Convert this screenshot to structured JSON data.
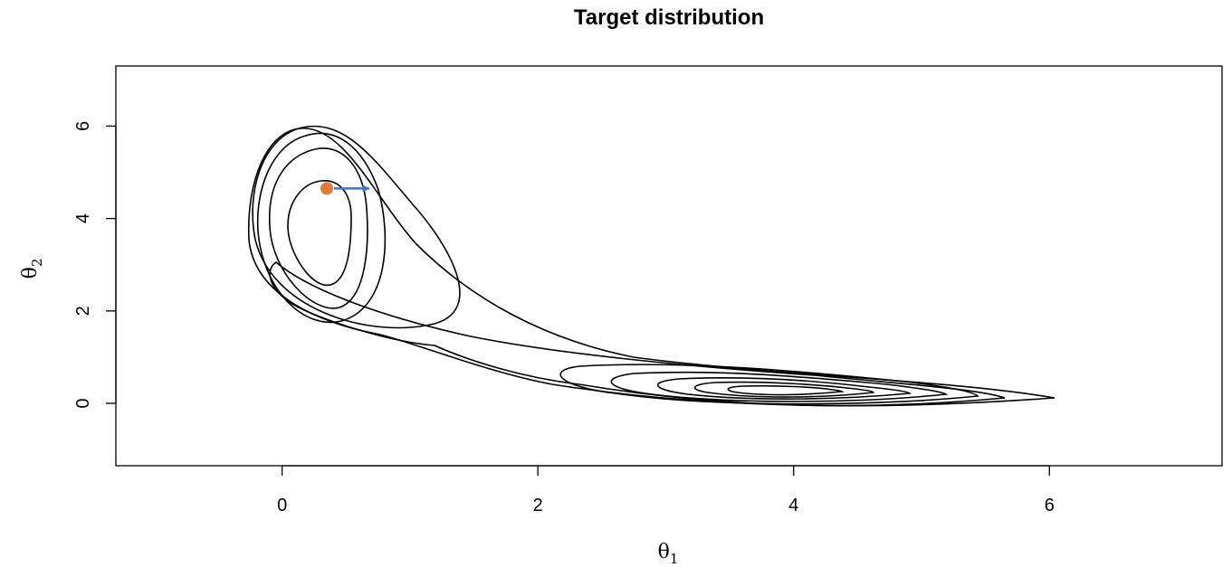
{
  "chart_data": {
    "type": "contour",
    "title": "Target distribution",
    "xlabel_symbol": "θ",
    "xlabel_subscript": "1",
    "ylabel_symbol": "θ",
    "ylabel_subscript": "2",
    "xlim": [
      -1.3,
      7.35
    ],
    "ylim": [
      -1.35,
      7.3
    ],
    "x_ticks": [
      0,
      2,
      4,
      6
    ],
    "y_ticks": [
      0,
      2,
      4,
      6
    ],
    "grid": false,
    "modes": [
      {
        "x": 0.2,
        "y": 3.6
      },
      {
        "x": 3.6,
        "y": 0.3
      }
    ],
    "contour_levels": 9,
    "current_point": {
      "x": 0.35,
      "y": 4.65,
      "color": "#e07b39"
    },
    "momentum_arrow": {
      "from": [
        0.35,
        4.65
      ],
      "to": [
        0.68,
        4.65
      ],
      "color": "#4472c4"
    }
  }
}
